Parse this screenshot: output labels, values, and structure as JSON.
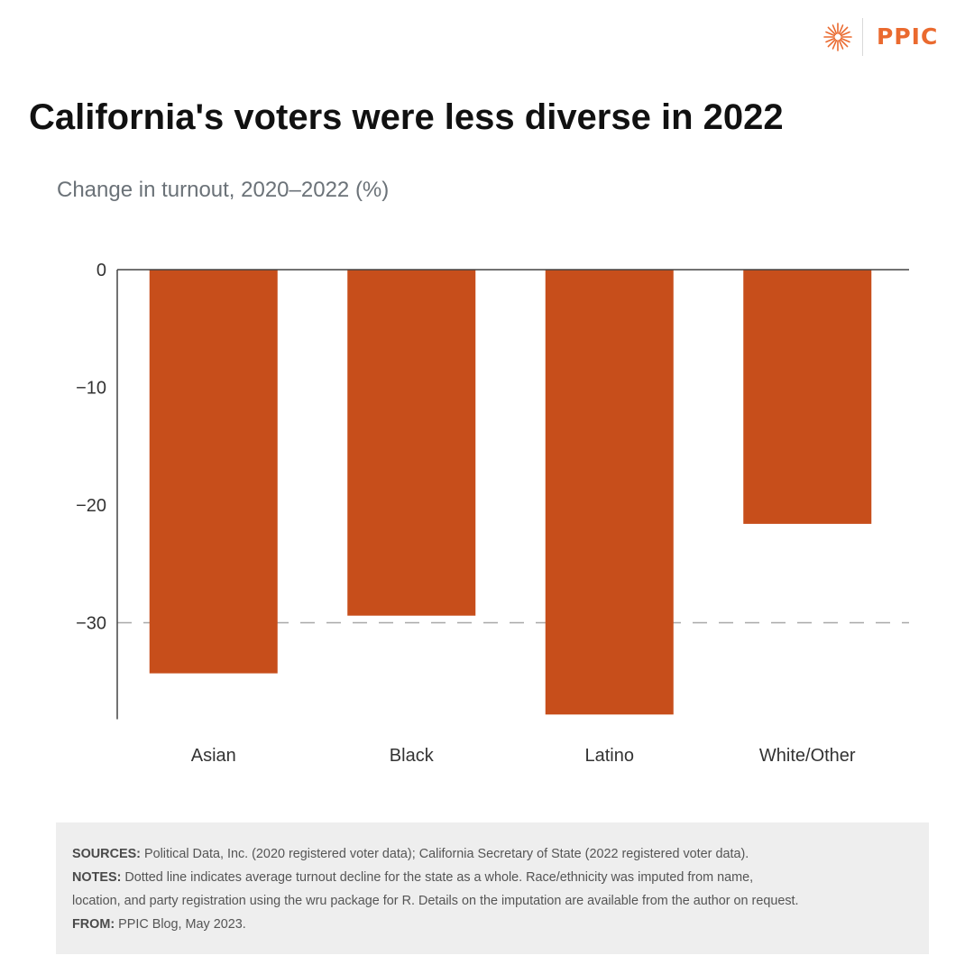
{
  "brand": {
    "name": "PPIC",
    "color": "#ea6a2f"
  },
  "title": "California's voters were less diverse in 2022",
  "subtitle": "Change in turnout, 2020–2022 (%)",
  "chart_data": {
    "type": "bar",
    "categories": [
      "Asian",
      "Black",
      "Latino",
      "White/Other"
    ],
    "values": [
      -34.3,
      -29.4,
      -37.8,
      -21.6
    ],
    "title": "California's voters were less diverse in 2022",
    "ylabel": "Change in turnout, 2020–2022 (%)",
    "ylim": [
      -38.2,
      0
    ],
    "yticks": [
      0,
      -10,
      -20,
      -30
    ],
    "ytick_labels": [
      "0",
      "−10",
      "−20",
      "−30"
    ],
    "reference_line": {
      "value": -30,
      "style": "dashed"
    },
    "grid": false,
    "bar_color": "#c74e1b"
  },
  "notes": {
    "sources_label": "SOURCES:",
    "sources_text": " Political Data, Inc. (2020 registered voter data); California Secretary of State (2022 registered voter data).",
    "notes_label": "NOTES:",
    "notes_text_1": " Dotted line indicates average turnout decline for the state as a whole. Race/ethnicity was imputed from name,",
    "notes_text_2": "location, and party registration using the wru package for R. Details on the imputation are available from the author on request.",
    "from_label": "FROM:",
    "from_text": " PPIC Blog, May 2023."
  }
}
